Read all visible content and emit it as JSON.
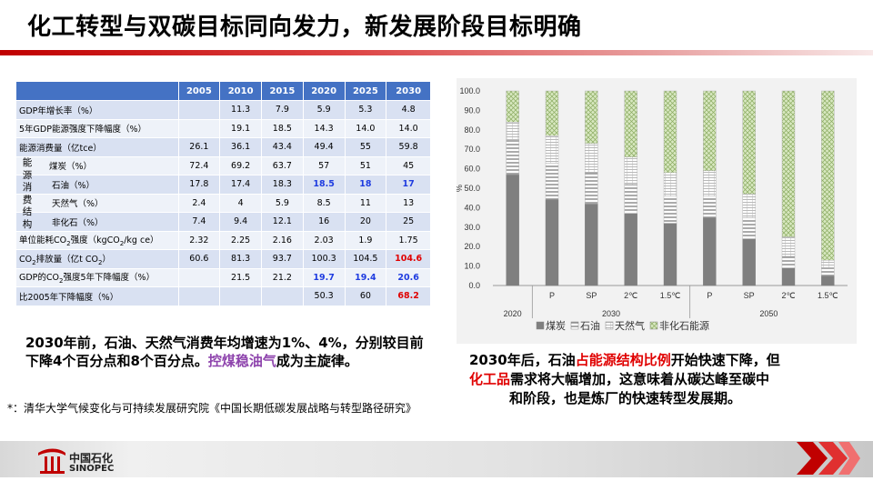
{
  "title": "化工转型与双碳目标同向发力，新发展阶段目标明确",
  "table": {
    "years": [
      "2005",
      "2010",
      "2015",
      "2020",
      "2025",
      "2030"
    ],
    "group_label": "能源消费结构",
    "rows": [
      {
        "label": "GDP年增长率（%）",
        "values": [
          "",
          "11.3",
          "7.9",
          "5.9",
          "5.3",
          "4.8"
        ]
      },
      {
        "label": "5年GDP能源强度下降幅度（%）",
        "values": [
          "",
          "19.1",
          "18.5",
          "14.3",
          "14.0",
          "14.0"
        ]
      },
      {
        "label": "能源消费量（亿tce）",
        "values": [
          "26.1",
          "36.1",
          "43.4",
          "49.4",
          "55",
          "59.8"
        ]
      },
      {
        "label": "煤炭（%）",
        "values": [
          "72.4",
          "69.2",
          "63.7",
          "57",
          "51",
          "45"
        ]
      },
      {
        "label": "石油（%）",
        "values": [
          "17.8",
          "17.4",
          "18.3",
          "18.5",
          "18",
          "17"
        ]
      },
      {
        "label": "天然气（%）",
        "values": [
          "2.4",
          "4",
          "5.9",
          "8.5",
          "11",
          "13"
        ]
      },
      {
        "label": "非化石（%）",
        "values": [
          "7.4",
          "9.4",
          "12.1",
          "16",
          "20",
          "25"
        ]
      },
      {
        "label_a": "单位能耗CO",
        "label_b": "强度（kgCO",
        "label_c": "/kg ce）",
        "label_sub": "2",
        "values": [
          "2.32",
          "2.25",
          "2.16",
          "2.03",
          "1.9",
          "1.75"
        ]
      },
      {
        "label_a": "CO",
        "label_b": "排放量（亿t CO",
        "label_c": "）",
        "label_sub": "2",
        "values": [
          "60.6",
          "81.3",
          "93.7",
          "100.3",
          "104.5",
          "104.6"
        ]
      },
      {
        "label_a": "GDP的CO",
        "label_b": "强度5年下降幅度（%）",
        "label_c": "",
        "label_sub": "2",
        "values": [
          "",
          "21.5",
          "21.2",
          "19.7",
          "19.4",
          "20.6"
        ]
      },
      {
        "label": "比2005年下降幅度（%）",
        "values": [
          "",
          "",
          "",
          "50.3",
          "60",
          "68.2"
        ]
      }
    ]
  },
  "note1": {
    "p1": "2030年前，石油、天然气消费年均增速为1%、4%，分别较目前下降4个百分点和8个百分点。",
    "hl": "控煤稳油气",
    "p2": "成为主旋律。"
  },
  "source": "*：清华大学气候变化与可持续发展研究院《中国长期低碳发展战略与转型路径研究》",
  "note2": {
    "a": "2030年后，石油",
    "b": "占能源结构比例",
    "c": "开始快速下降，但",
    "d": "化工品",
    "e": "需求将大幅增加，这意味着从碳达峰至碳中",
    "f": "和阶段，也是炼厂的快速转型发展期。"
  },
  "logo": {
    "cn": "中国石化",
    "en": "SINOPEC"
  },
  "chart_data": {
    "type": "bar",
    "stacked": true,
    "ylabel": "%",
    "ylim": [
      0,
      100
    ],
    "yticks": [
      "0.0",
      "10.0",
      "20.0",
      "30.0",
      "40.0",
      "50.0",
      "60.0",
      "70.0",
      "80.0",
      "90.0",
      "100.0"
    ],
    "categories": [
      "2020",
      "P",
      "SP",
      "2℃",
      "1.5℃",
      "P",
      "SP",
      "2℃",
      "1.5℃"
    ],
    "groups": [
      {
        "label": "2020",
        "count": 1
      },
      {
        "label": "2030",
        "count": 4
      },
      {
        "label": "2050",
        "count": 4
      }
    ],
    "series": [
      {
        "name": "煤炭",
        "values": [
          57,
          44,
          42,
          37,
          32,
          35,
          24,
          9,
          5
        ]
      },
      {
        "name": "石油",
        "values": [
          18,
          19,
          16,
          15,
          14,
          11,
          11,
          6,
          4
        ]
      },
      {
        "name": "天然气",
        "values": [
          9,
          14,
          15,
          14,
          12,
          13,
          12,
          10,
          4
        ]
      },
      {
        "name": "非化石能源",
        "values": [
          16,
          23,
          27,
          34,
          42,
          41,
          53,
          75,
          87
        ]
      }
    ],
    "colors": {
      "coal": "#7f7f7f",
      "oil": "#ffffff",
      "gas": "#ffffff",
      "nonfossil": "#d8e8c0"
    }
  }
}
